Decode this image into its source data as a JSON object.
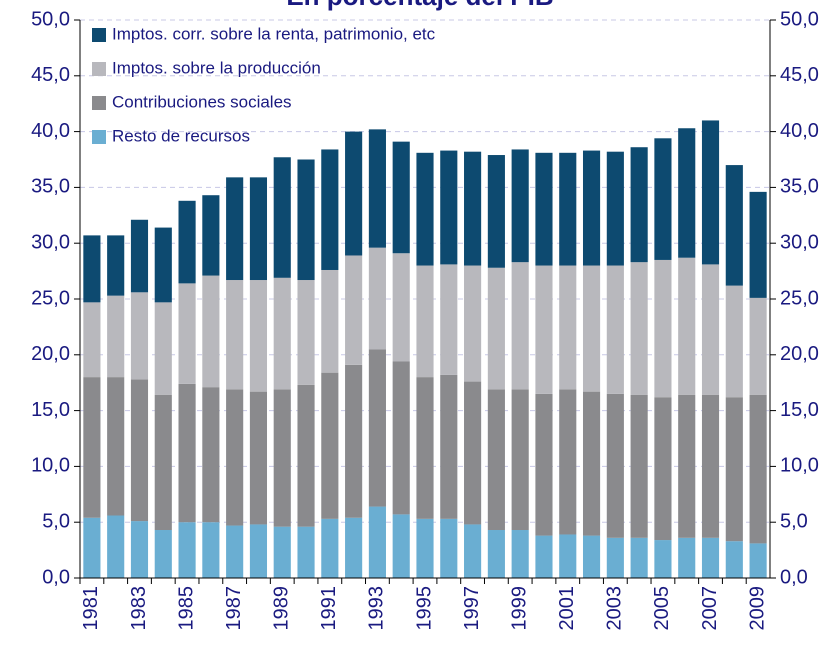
{
  "chart_data": {
    "type": "stacked_bar",
    "title": "En porcentaje del PIB",
    "categories": [
      "1981",
      null,
      "1983",
      null,
      "1985",
      null,
      "1987",
      null,
      "1989",
      null,
      "1991",
      null,
      "1993",
      null,
      "1995",
      null,
      "1997",
      null,
      "1999",
      null,
      "2001",
      null,
      "2003",
      null,
      "2005",
      null,
      "2007",
      null,
      "2009"
    ],
    "series": [
      {
        "name": "Imptos. corr. sobre la renta, patrimonio, etc",
        "color": "#0d4a70",
        "values": [
          6.0,
          5.4,
          6.5,
          6.7,
          7.4,
          7.2,
          9.2,
          9.2,
          10.8,
          10.8,
          10.8,
          11.1,
          10.6,
          10.0,
          10.1,
          10.2,
          10.2,
          10.1,
          10.1,
          10.1,
          10.1,
          10.3,
          10.2,
          10.3,
          10.9,
          11.6,
          12.9,
          10.8,
          9.5
        ]
      },
      {
        "name": "Imptos. sobre la producción",
        "color": "#b8b8bd",
        "values": [
          6.7,
          7.3,
          7.8,
          8.3,
          9.0,
          10.0,
          9.8,
          10.0,
          10.0,
          9.4,
          9.2,
          9.8,
          9.1,
          9.7,
          10.0,
          9.9,
          10.4,
          10.9,
          11.4,
          11.5,
          11.1,
          11.3,
          11.5,
          11.9,
          12.3,
          12.3,
          11.7,
          10.0,
          8.7
        ]
      },
      {
        "name": "Contribuciones sociales",
        "color": "#8a8a8d",
        "values": [
          12.6,
          12.4,
          12.7,
          12.1,
          12.4,
          12.1,
          12.2,
          11.9,
          12.3,
          12.7,
          13.1,
          13.7,
          14.1,
          13.7,
          12.7,
          12.9,
          12.8,
          12.6,
          12.6,
          12.7,
          13.0,
          12.9,
          12.9,
          12.8,
          12.8,
          12.8,
          12.8,
          12.9,
          13.3
        ]
      },
      {
        "name": "Resto de recursos",
        "color": "#6aaed2",
        "values": [
          5.4,
          5.6,
          5.1,
          4.3,
          5.0,
          5.0,
          4.7,
          4.8,
          4.6,
          4.6,
          5.3,
          5.4,
          6.4,
          5.7,
          5.3,
          5.3,
          4.8,
          4.3,
          4.3,
          3.8,
          3.9,
          3.8,
          3.6,
          3.6,
          3.4,
          3.6,
          3.6,
          3.3,
          3.1
        ]
      }
    ],
    "ylim": [
      0,
      50
    ],
    "yticks": [
      {
        "value": 0,
        "label": "0,0"
      },
      {
        "value": 5,
        "label": "5,0"
      },
      {
        "value": 10,
        "label": "10,0"
      },
      {
        "value": 15,
        "label": "15,0"
      },
      {
        "value": 20,
        "label": "20,0"
      },
      {
        "value": 25,
        "label": "25,0"
      },
      {
        "value": 30,
        "label": "30,0"
      },
      {
        "value": 35,
        "label": "35,0"
      },
      {
        "value": 40,
        "label": "40,0"
      },
      {
        "value": 45,
        "label": "45,0"
      },
      {
        "value": 50,
        "label": "50,0"
      }
    ],
    "y2lim": [
      0,
      50
    ],
    "y2ticks": [
      {
        "value": 0,
        "label": "0,0"
      },
      {
        "value": 5,
        "label": "5,0"
      },
      {
        "value": 10,
        "label": "10,0"
      },
      {
        "value": 15,
        "label": "15,0"
      },
      {
        "value": 20,
        "label": "20,0"
      },
      {
        "value": 25,
        "label": "25,0"
      },
      {
        "value": 30,
        "label": "30,0"
      },
      {
        "value": 35,
        "label": "35,0"
      },
      {
        "value": 40,
        "label": "40,0"
      },
      {
        "value": 45,
        "label": "45,0"
      },
      {
        "value": 50,
        "label": "50,0"
      }
    ],
    "grid": true,
    "legend": "top-left"
  }
}
